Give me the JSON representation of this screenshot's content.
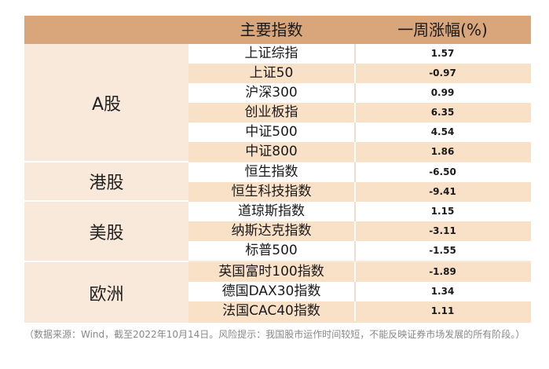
{
  "header": {
    "name_col": "主要指数",
    "change_col": "一周涨幅(%)"
  },
  "groups": {
    "a_share": "A股",
    "hk": "港股",
    "us": "美股",
    "eu": "欧洲"
  },
  "rows": [
    {
      "name": "上证综指",
      "change": "1.57"
    },
    {
      "name": "上证50",
      "change": "-0.97"
    },
    {
      "name": "沪深300",
      "change": "0.99"
    },
    {
      "name": "创业板指",
      "change": "6.35"
    },
    {
      "name": "中证500",
      "change": "4.54"
    },
    {
      "name": "中证800",
      "change": "1.86"
    },
    {
      "name": "恒生指数",
      "change": "-6.50"
    },
    {
      "name": "恒生科技指数",
      "change": "-9.41"
    },
    {
      "name": "道琼斯指数",
      "change": "1.15"
    },
    {
      "name": "纳斯达克指数",
      "change": "-3.11"
    },
    {
      "name": "标普500",
      "change": "-1.55"
    },
    {
      "name": "英国富时100指数",
      "change": "-1.89"
    },
    {
      "name": "德国DAX30指数",
      "change": "1.34"
    },
    {
      "name": "法国CAC40指数",
      "change": "1.11"
    }
  ],
  "footnote": "（数据来源：Wind，截至2022年10月14日。风险提示：我国股市运作时间较短，不能反映证券市场发展的所有阶段。）",
  "colors": {
    "header_bg": "#d9a57a",
    "row_tan": "#f9e1c8",
    "row_white": "#ffffff",
    "group_bg": "#f9e9da"
  }
}
